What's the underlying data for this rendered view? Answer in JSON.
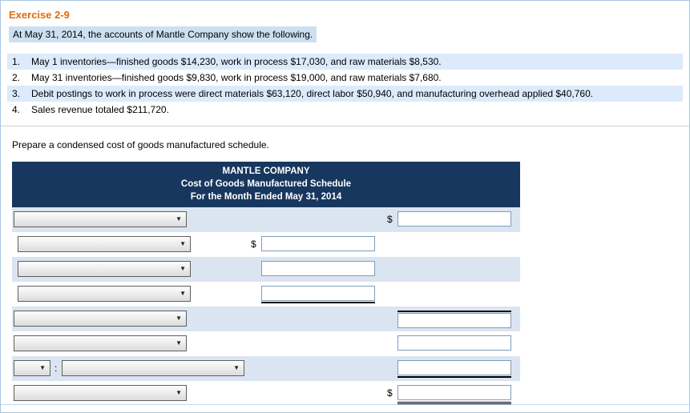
{
  "page": {
    "title": "Exercise 2-9",
    "intro": "At May 31, 2014, the accounts of Mantle Company show the following.",
    "items": [
      {
        "num": "1.",
        "text": "May 1 inventories—finished goods $14,230, work in process $17,030, and raw materials $8,530."
      },
      {
        "num": "2.",
        "text": "May 31 inventories—finished goods $9,830, work in process $19,000, and raw materials $7,680."
      },
      {
        "num": "3.",
        "text": "Debit postings to work in process were direct materials $63,120, direct labor $50,940, and manufacturing overhead applied $40,760."
      },
      {
        "num": "4.",
        "text": "Sales revenue totaled $211,720."
      }
    ],
    "instruction": "Prepare a condensed cost of goods manufactured schedule."
  },
  "schedule": {
    "header": {
      "company": "MANTLE COMPANY",
      "title": "Cost of Goods Manufactured Schedule",
      "period": "For the Month Ended May 31, 2014"
    },
    "currency_symbol": "$",
    "separator": ":"
  },
  "icons": {
    "dropdown_arrow": "▼"
  },
  "colors": {
    "exercise_title": "#e36c0a",
    "table_header_bg": "#17375e",
    "row_stripe": "#dbe5f1",
    "intro_highlight": "#cde0f2"
  }
}
